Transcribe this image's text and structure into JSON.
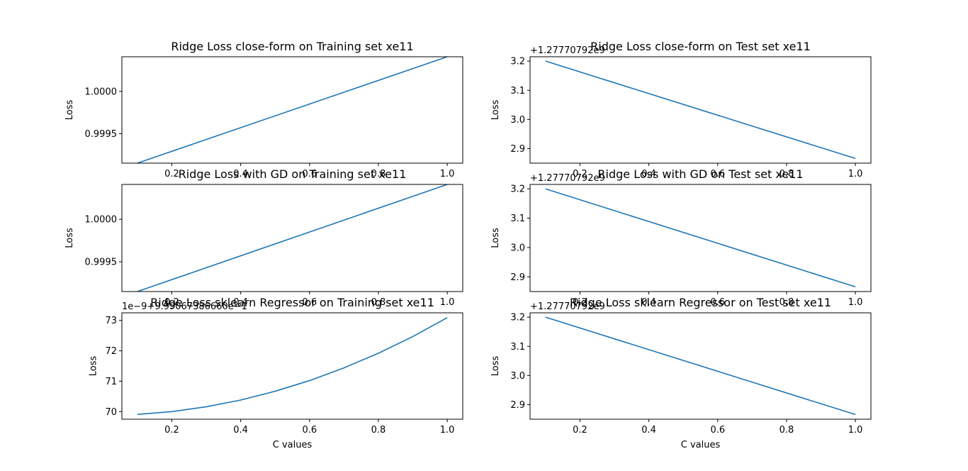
{
  "colors": {
    "line": "#1f77b4",
    "frame": "#000000",
    "background": "#ffffff"
  },
  "chart_data": [
    {
      "type": "line",
      "title": "Ridge Loss close-form on Training set xe11",
      "xlabel": "",
      "ylabel": "Loss",
      "offset_text": "",
      "xlim": [
        0.055,
        1.045
      ],
      "ylim": [
        0.99915,
        1.00041
      ],
      "x_ticks": [
        0.2,
        0.4,
        0.6,
        0.8,
        1.0
      ],
      "x_tick_labels": [
        "0.2",
        "0.4",
        "0.6",
        "0.8",
        "1.0"
      ],
      "y_ticks": [
        0.9995,
        1.0
      ],
      "y_tick_labels": [
        "0.9995",
        "1.0000"
      ],
      "x": [
        0.1,
        1.0
      ],
      "series": [
        {
          "values": [
            0.99915,
            1.00041
          ]
        }
      ]
    },
    {
      "type": "line",
      "title": "Ridge Loss close-form on Test set xe11",
      "xlabel": "",
      "ylabel": "Loss",
      "offset_text": "+1.27770792e9",
      "xlim": [
        0.055,
        1.045
      ],
      "ylim": [
        2.85,
        3.215
      ],
      "x_ticks": [
        0.2,
        0.4,
        0.6,
        0.8,
        1.0
      ],
      "x_tick_labels": [
        "0.2",
        "0.4",
        "0.6",
        "0.8",
        "1.0"
      ],
      "y_ticks": [
        2.9,
        3.0,
        3.1,
        3.2
      ],
      "y_tick_labels": [
        "2.9",
        "3.0",
        "3.1",
        "3.2"
      ],
      "x": [
        0.1,
        1.0
      ],
      "series": [
        {
          "values": [
            3.2,
            2.866
          ]
        }
      ]
    },
    {
      "type": "line",
      "title": "Ridge Loss with GD on Training set xe11",
      "xlabel": "",
      "ylabel": "Loss",
      "offset_text": "",
      "xlim": [
        0.055,
        1.045
      ],
      "ylim": [
        0.99915,
        1.00041
      ],
      "x_ticks": [
        0.2,
        0.4,
        0.6,
        0.8,
        1.0
      ],
      "x_tick_labels": [
        "0.2",
        "0.4",
        "0.6",
        "0.8",
        "1.0"
      ],
      "y_ticks": [
        0.9995,
        1.0
      ],
      "y_tick_labels": [
        "0.9995",
        "1.0000"
      ],
      "x": [
        0.1,
        1.0
      ],
      "series": [
        {
          "values": [
            0.99915,
            1.00041
          ]
        }
      ]
    },
    {
      "type": "line",
      "title": "Ridge Loss with GD on Test set xe11",
      "xlabel": "",
      "ylabel": "Loss",
      "offset_text": "+1.27770792e9",
      "xlim": [
        0.055,
        1.045
      ],
      "ylim": [
        2.85,
        3.215
      ],
      "x_ticks": [
        0.2,
        0.4,
        0.6,
        0.8,
        1.0
      ],
      "x_tick_labels": [
        "0.2",
        "0.4",
        "0.6",
        "0.8",
        "1.0"
      ],
      "y_ticks": [
        2.9,
        3.0,
        3.1,
        3.2
      ],
      "y_tick_labels": [
        "2.9",
        "3.0",
        "3.1",
        "3.2"
      ],
      "x": [
        0.1,
        1.0
      ],
      "series": [
        {
          "values": [
            3.2,
            2.866
          ]
        }
      ]
    },
    {
      "type": "line",
      "title": "Ridge Loss sklearn Regressor on Training set xe11",
      "xlabel": "C values",
      "ylabel": "Loss",
      "offset_text": "1e−9+9.99067386660e−1",
      "xlim": [
        0.055,
        1.045
      ],
      "ylim": [
        69.75,
        73.25
      ],
      "x_ticks": [
        0.2,
        0.4,
        0.6,
        0.8,
        1.0
      ],
      "x_tick_labels": [
        "0.2",
        "0.4",
        "0.6",
        "0.8",
        "1.0"
      ],
      "y_ticks": [
        70,
        71,
        72,
        73
      ],
      "y_tick_labels": [
        "70",
        "71",
        "72",
        "73"
      ],
      "x": [
        0.1,
        0.2,
        0.3,
        0.4,
        0.5,
        0.6,
        0.7,
        0.8,
        0.9,
        1.0
      ],
      "series": [
        {
          "values": [
            69.91,
            70.0,
            70.16,
            70.38,
            70.67,
            71.02,
            71.44,
            71.92,
            72.47,
            73.09
          ]
        }
      ]
    },
    {
      "type": "line",
      "title": "Ridge Loss sklearn Regressor on Test set xe11",
      "xlabel": "C values",
      "ylabel": "Loss",
      "offset_text": "+1.27770792e9",
      "xlim": [
        0.055,
        1.045
      ],
      "ylim": [
        2.85,
        3.215
      ],
      "x_ticks": [
        0.2,
        0.4,
        0.6,
        0.8,
        1.0
      ],
      "x_tick_labels": [
        "0.2",
        "0.4",
        "0.6",
        "0.8",
        "1.0"
      ],
      "y_ticks": [
        2.9,
        3.0,
        3.1,
        3.2
      ],
      "y_tick_labels": [
        "2.9",
        "3.0",
        "3.1",
        "3.2"
      ],
      "x": [
        0.1,
        1.0
      ],
      "series": [
        {
          "values": [
            3.2,
            2.866
          ]
        }
      ]
    }
  ]
}
